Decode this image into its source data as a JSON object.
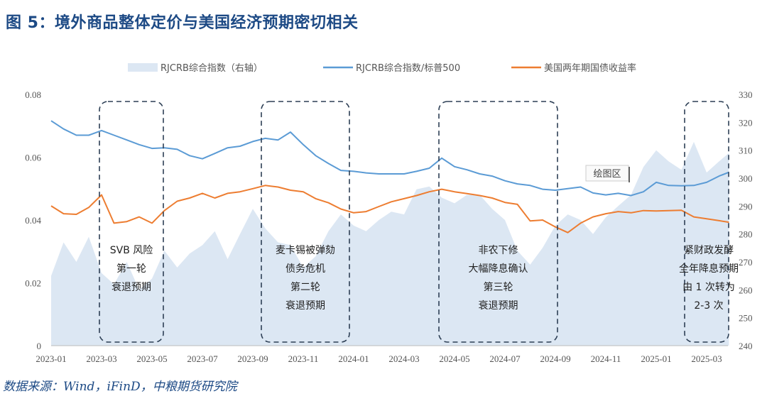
{
  "title": "图 5：境外商品整体定价与美国经济预期密切相关",
  "source": "数据来源：Wind，iFinD，中粮期货研究院",
  "plot_label": "绘图区",
  "chart_data": {
    "type": "line",
    "title": "",
    "grid": false,
    "legend_position": "top",
    "x_ticks": [
      "2023-01",
      "2023-03",
      "2023-05",
      "2023-07",
      "2023-09",
      "2023-11",
      "2024-01",
      "2024-03",
      "2024-05",
      "2024-07",
      "2024-09",
      "2024-11",
      "2025-01",
      "2025-03"
    ],
    "y_left": {
      "range": [
        0,
        0.08
      ],
      "ticks": [
        "0",
        "0.02",
        "0.04",
        "0.06",
        "0.08"
      ]
    },
    "y_right": {
      "range": [
        240,
        330
      ],
      "ticks": [
        "240",
        "250",
        "260",
        "270",
        "280",
        "290",
        "300",
        "310",
        "320",
        "330"
      ]
    },
    "x": [
      "2023-01-01",
      "2023-01-16",
      "2023-02-01",
      "2023-02-16",
      "2023-03-01",
      "2023-03-16",
      "2023-04-01",
      "2023-04-16",
      "2023-05-01",
      "2023-05-16",
      "2023-06-01",
      "2023-06-16",
      "2023-07-01",
      "2023-07-16",
      "2023-08-01",
      "2023-08-16",
      "2023-09-01",
      "2023-09-16",
      "2023-10-01",
      "2023-10-16",
      "2023-11-01",
      "2023-11-16",
      "2023-12-01",
      "2023-12-16",
      "2024-01-01",
      "2024-01-16",
      "2024-02-01",
      "2024-02-16",
      "2024-03-01",
      "2024-03-16",
      "2024-04-01",
      "2024-04-16",
      "2024-05-01",
      "2024-05-16",
      "2024-06-01",
      "2024-06-16",
      "2024-07-01",
      "2024-07-16",
      "2024-08-01",
      "2024-08-16",
      "2024-09-01",
      "2024-09-16",
      "2024-10-01",
      "2024-10-16",
      "2024-11-01",
      "2024-11-16",
      "2024-12-01",
      "2024-12-16",
      "2025-01-01",
      "2025-01-16",
      "2025-02-01",
      "2025-02-16",
      "2025-03-01",
      "2025-03-16",
      "2025-03-28"
    ],
    "series": [
      {
        "name": "RJCRB综合指数（右轴）",
        "type": "area",
        "axis": "right",
        "color": "#dce7f3",
        "values": [
          265,
          277,
          270,
          279,
          266,
          262,
          270,
          260,
          264,
          274,
          268,
          273,
          276,
          281,
          271,
          280,
          289,
          282,
          277,
          276,
          268,
          272,
          281,
          287,
          283,
          281,
          285,
          288,
          287,
          296,
          297,
          293,
          291,
          294,
          294,
          289,
          285,
          274,
          269,
          275,
          283,
          287,
          285,
          280,
          286,
          290,
          294,
          304,
          310,
          306,
          303,
          313,
          302,
          306,
          309
        ]
      },
      {
        "name": "RJCRB综合指数/标普500",
        "type": "line",
        "axis": "left",
        "color": "#5b9bd5",
        "values": [
          0.0716,
          0.069,
          0.067,
          0.067,
          0.0685,
          0.067,
          0.0655,
          0.064,
          0.0628,
          0.063,
          0.0625,
          0.0605,
          0.0595,
          0.0612,
          0.063,
          0.0635,
          0.065,
          0.066,
          0.0655,
          0.068,
          0.064,
          0.0605,
          0.058,
          0.0558,
          0.0555,
          0.055,
          0.0547,
          0.0547,
          0.0547,
          0.0555,
          0.0565,
          0.0597,
          0.057,
          0.056,
          0.0547,
          0.054,
          0.0525,
          0.0515,
          0.051,
          0.0498,
          0.0495,
          0.05,
          0.0505,
          0.0486,
          0.048,
          0.0485,
          0.0478,
          0.049,
          0.052,
          0.051,
          0.0509,
          0.051,
          0.052,
          0.054,
          0.0552
        ]
      },
      {
        "name": "美国两年期国债收益率",
        "type": "line",
        "axis": "left",
        "color": "#ed7d31",
        "values": [
          0.0445,
          0.042,
          0.0418,
          0.044,
          0.048,
          0.039,
          0.0395,
          0.041,
          0.039,
          0.043,
          0.046,
          0.047,
          0.0485,
          0.047,
          0.0485,
          0.049,
          0.05,
          0.051,
          0.0505,
          0.0495,
          0.049,
          0.0468,
          0.0455,
          0.0435,
          0.0423,
          0.0427,
          0.0443,
          0.0458,
          0.0468,
          0.0478,
          0.049,
          0.0498,
          0.049,
          0.0484,
          0.0478,
          0.047,
          0.0456,
          0.045,
          0.0397,
          0.04,
          0.0378,
          0.036,
          0.039,
          0.041,
          0.042,
          0.0427,
          0.0423,
          0.043,
          0.0429,
          0.043,
          0.0431,
          0.041,
          0.0404,
          0.0398,
          0.0393
        ]
      }
    ],
    "annotations": [
      {
        "lines": [
          "SVB 风险",
          "第一轮",
          "衰退预期"
        ]
      },
      {
        "lines": [
          "麦卡锡被弹劾",
          "债务危机",
          "第二轮",
          "衰退预期"
        ]
      },
      {
        "lines": [
          "非农下修",
          "大幅降息确认",
          "第三轮",
          "衰退预期"
        ]
      },
      {
        "lines": [
          "紧财政发酵",
          "全年降息预期",
          "由 1 次转为",
          "2-3 次"
        ]
      }
    ]
  }
}
